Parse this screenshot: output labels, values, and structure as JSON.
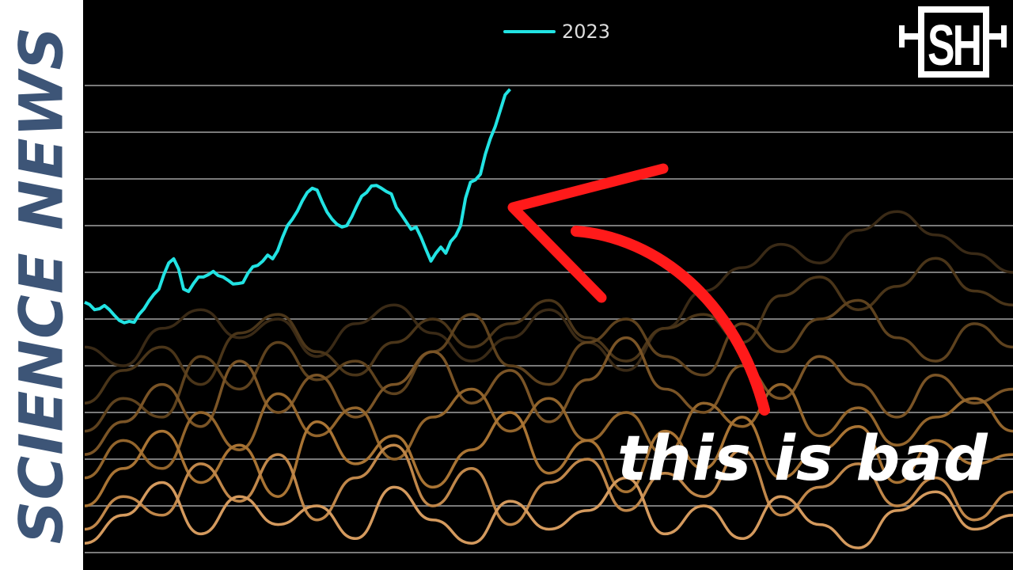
{
  "brand": {
    "text": "SCIENCE NEWS",
    "color": "#3d5577"
  },
  "logo": {
    "text": "SH"
  },
  "caption": {
    "text": "this is bad"
  },
  "annotation_color": "#ff1a1a",
  "chart_data": {
    "type": "line",
    "grid": true,
    "gridline_count": 11,
    "legend": {
      "position": "top-center",
      "entries": [
        "2023"
      ]
    },
    "ylim": [
      0,
      10
    ],
    "series": [
      {
        "name": "2023",
        "color": "#22e3e3",
        "highlight": true,
        "values": [
          5.36,
          5.31,
          5.2,
          5.22,
          5.29,
          5.2,
          5.08,
          4.97,
          4.92,
          4.95,
          4.93,
          5.1,
          5.22,
          5.39,
          5.53,
          5.64,
          5.95,
          6.2,
          6.29,
          6.07,
          5.64,
          5.59,
          5.76,
          5.9,
          5.9,
          5.95,
          6.02,
          5.93,
          5.9,
          5.83,
          5.75,
          5.76,
          5.78,
          5.98,
          6.12,
          6.15,
          6.24,
          6.37,
          6.29,
          6.46,
          6.75,
          7.0,
          7.14,
          7.31,
          7.53,
          7.71,
          7.8,
          7.76,
          7.51,
          7.29,
          7.14,
          7.03,
          6.97,
          7.0,
          7.19,
          7.42,
          7.63,
          7.71,
          7.85,
          7.86,
          7.8,
          7.73,
          7.68,
          7.39,
          7.24,
          7.08,
          6.92,
          6.97,
          6.75,
          6.49,
          6.24,
          6.41,
          6.54,
          6.41,
          6.66,
          6.78,
          7.0,
          7.59,
          7.93,
          7.98,
          8.1,
          8.53,
          8.86,
          9.12,
          9.46,
          9.8,
          9.92
        ]
      },
      {
        "color": "#3a2a16",
        "values": [
          4.4,
          4.0,
          4.8,
          5.2,
          4.6,
          5.0,
          4.2,
          4.9,
          5.3,
          4.7,
          4.1,
          4.6,
          5.2,
          4.5,
          3.9,
          4.8,
          5.6,
          6.1,
          6.6,
          6.2,
          6.9,
          7.3,
          6.8,
          6.4,
          6.0
        ]
      },
      {
        "color": "#4a3519",
        "values": [
          3.2,
          3.9,
          4.4,
          3.6,
          4.7,
          5.1,
          4.3,
          3.8,
          4.5,
          5.0,
          4.4,
          4.9,
          5.4,
          4.6,
          4.1,
          4.8,
          5.1,
          4.5,
          5.5,
          5.9,
          5.2,
          5.7,
          6.3,
          5.6,
          5.3
        ]
      },
      {
        "color": "#5e421e",
        "values": [
          2.6,
          3.3,
          2.9,
          4.2,
          3.5,
          4.5,
          3.7,
          4.1,
          3.4,
          4.3,
          5.1,
          4.0,
          3.6,
          4.5,
          5.0,
          4.2,
          3.8,
          4.9,
          4.3,
          5.0,
          5.4,
          4.6,
          4.1,
          4.9,
          4.4
        ]
      },
      {
        "color": "#7a5426",
        "values": [
          2.1,
          2.8,
          3.6,
          2.7,
          4.1,
          3.0,
          3.8,
          2.9,
          3.6,
          4.3,
          3.2,
          3.9,
          2.8,
          3.7,
          4.6,
          3.5,
          3.0,
          4.0,
          3.3,
          4.2,
          3.6,
          2.9,
          3.8,
          3.2,
          3.5
        ]
      },
      {
        "color": "#93652c",
        "values": [
          1.6,
          2.4,
          1.8,
          3.0,
          2.2,
          3.4,
          2.5,
          3.1,
          2.0,
          2.9,
          3.5,
          2.6,
          3.3,
          2.4,
          3.0,
          2.1,
          3.2,
          2.7,
          3.6,
          2.5,
          3.1,
          2.3,
          2.9,
          3.3,
          2.6
        ]
      },
      {
        "color": "#a97434",
        "values": [
          1.0,
          1.8,
          2.6,
          1.5,
          2.3,
          1.2,
          2.8,
          1.9,
          2.5,
          1.4,
          2.2,
          3.0,
          1.7,
          2.4,
          1.3,
          2.6,
          1.8,
          2.9,
          1.6,
          2.2,
          2.7,
          1.5,
          2.4,
          1.9,
          2.1
        ]
      },
      {
        "color": "#c0874a",
        "values": [
          0.5,
          1.2,
          0.8,
          1.9,
          1.1,
          2.1,
          0.7,
          1.6,
          2.3,
          1.0,
          1.8,
          0.6,
          1.5,
          2.0,
          0.9,
          1.7,
          1.2,
          2.2,
          0.8,
          1.4,
          1.9,
          1.0,
          1.6,
          0.7,
          1.3
        ]
      },
      {
        "color": "#d49a5e",
        "values": [
          0.2,
          0.8,
          1.5,
          0.4,
          1.2,
          0.6,
          1.0,
          0.3,
          1.4,
          0.7,
          0.2,
          1.1,
          0.5,
          0.9,
          1.6,
          0.4,
          1.0,
          0.3,
          1.2,
          0.6,
          0.1,
          0.9,
          1.3,
          0.5,
          0.8
        ]
      }
    ]
  }
}
